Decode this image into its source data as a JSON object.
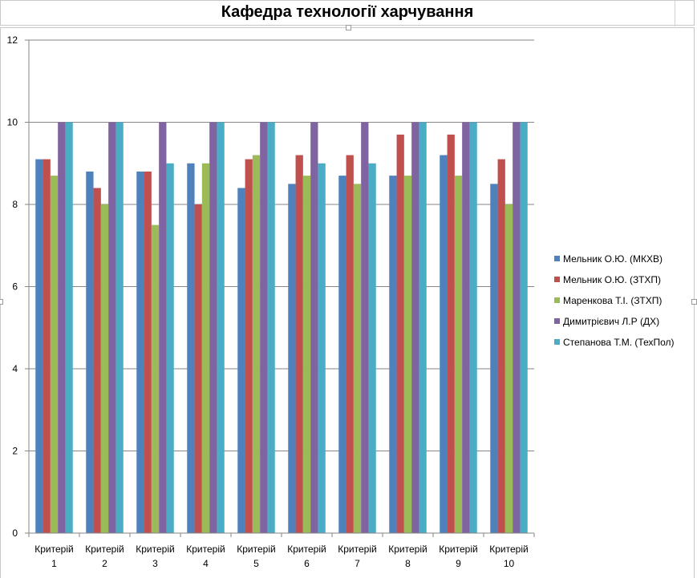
{
  "chart_data": {
    "type": "bar",
    "title": "Кафедра технології харчування",
    "xlabel": "",
    "ylabel": "",
    "ylim": [
      0,
      12
    ],
    "yticks": [
      0,
      2,
      4,
      6,
      8,
      10,
      12
    ],
    "grid": true,
    "legend_position": "right",
    "categories": [
      [
        "Критерій",
        "1"
      ],
      [
        "Критерій",
        "2"
      ],
      [
        "Критерій",
        "3"
      ],
      [
        "Критерій",
        "4"
      ],
      [
        "Критерій",
        "5"
      ],
      [
        "Критерій",
        "6"
      ],
      [
        "Критерій",
        "7"
      ],
      [
        "Критерій",
        "8"
      ],
      [
        "Критерій",
        "9"
      ],
      [
        "Критерій",
        "10"
      ]
    ],
    "series": [
      {
        "name": "Мельник О.Ю. (МКХВ)",
        "color": "#4f81bd",
        "values": [
          9.1,
          8.8,
          8.8,
          9.0,
          8.4,
          8.5,
          8.7,
          8.7,
          9.2,
          8.5
        ]
      },
      {
        "name": "Мельник О.Ю. (ЗТХП)",
        "color": "#c0504d",
        "values": [
          9.1,
          8.4,
          8.8,
          8.0,
          9.1,
          9.2,
          9.2,
          9.7,
          9.7,
          9.1
        ]
      },
      {
        "name": "Маренкова Т.І. (ЗТХП)",
        "color": "#9bbb59",
        "values": [
          8.7,
          8.0,
          7.5,
          9.0,
          9.2,
          8.7,
          8.5,
          8.7,
          8.7,
          8.0
        ]
      },
      {
        "name": "Димитрієвич Л.Р (ДХ)",
        "color": "#8064a2",
        "values": [
          10,
          10,
          10,
          10,
          10,
          10,
          10,
          10,
          10,
          10
        ]
      },
      {
        "name": "Степанова Т.М. (ТехПол)",
        "color": "#4bacc6",
        "values": [
          10,
          10,
          9.0,
          10,
          10,
          9.0,
          9.0,
          10,
          10,
          10
        ]
      }
    ]
  }
}
